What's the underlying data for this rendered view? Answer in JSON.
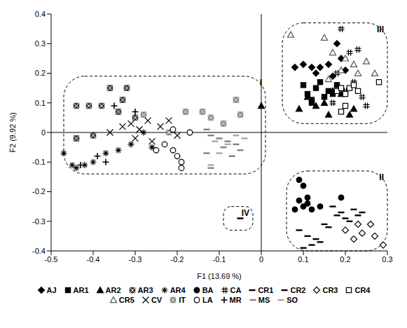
{
  "chart_data": {
    "type": "scatter",
    "xlabel": "F1 (13.69 %)",
    "ylabel": "F2 (9.92 %)",
    "xlim": [
      -0.5,
      0.3
    ],
    "xticks": [
      -0.5,
      -0.4,
      -0.3,
      -0.2,
      -0.1,
      0,
      0.1,
      0.2,
      0.3
    ],
    "ylim": [
      -0.4,
      0.4
    ],
    "yticks": [
      -0.4,
      -0.3,
      -0.2,
      -0.1,
      0,
      0.1,
      0.2,
      0.3,
      0.4
    ],
    "grid": false,
    "legend": "bottom",
    "groups": [
      {
        "label": "I",
        "x1": -0.47,
        "x2": 0.01,
        "y1": -0.14,
        "y2": 0.19
      },
      {
        "label": "II",
        "x1": 0.06,
        "x2": 0.3,
        "y1": -0.4,
        "y2": -0.13
      },
      {
        "label": "III",
        "x1": 0.05,
        "x2": 0.3,
        "y1": 0.03,
        "y2": 0.37
      },
      {
        "label": "IV",
        "x1": -0.09,
        "x2": -0.02,
        "y1": -0.33,
        "y2": -0.25
      }
    ],
    "series": [
      {
        "name": "AJ",
        "color": "#000000",
        "marker": "diamond",
        "x": [
          0.08,
          0.1,
          0.12,
          0.14,
          0.16,
          0.17,
          0.18,
          0.19,
          0.2,
          0.13
        ],
        "y": [
          0.22,
          0.23,
          0.22,
          0.22,
          0.23,
          0.19,
          0.3,
          0.25,
          0.21,
          0.2
        ]
      },
      {
        "name": "AR1",
        "color": "#000000",
        "marker": "square",
        "x": [
          0.1,
          0.11,
          0.12,
          0.13,
          0.14,
          0.15,
          0.16,
          0.17,
          0.18,
          0.12
        ],
        "y": [
          0.16,
          0.13,
          0.1,
          0.15,
          0.17,
          0.12,
          0.14,
          0.13,
          0.16,
          0.11
        ]
      },
      {
        "name": "AR2",
        "color": "#000000",
        "marker": "triangle",
        "x": [
          0.09,
          0.11,
          0.13,
          0.15,
          0.17,
          0.19,
          0.21,
          0.22,
          0.16,
          0.0
        ],
        "y": [
          0.08,
          0.12,
          0.09,
          0.1,
          0.14,
          0.13,
          0.06,
          0.08,
          0.06,
          0.09
        ]
      },
      {
        "name": "AR3",
        "color": "#333333",
        "marker": "bowtie",
        "x": [
          -0.44,
          -0.41,
          -0.38,
          -0.36,
          -0.32,
          -0.33,
          -0.34,
          -0.3,
          -0.44,
          -0.4
        ],
        "y": [
          0.09,
          0.09,
          0.09,
          0.15,
          0.15,
          0.11,
          0.07,
          0.05,
          -0.02,
          -0.01
        ]
      },
      {
        "name": "AR4",
        "color": "#000000",
        "marker": "asterisk",
        "x": [
          -0.47,
          -0.45,
          -0.44,
          -0.42,
          -0.4,
          -0.37,
          -0.34,
          -0.31,
          -0.26,
          -0.28
        ],
        "y": [
          -0.07,
          -0.11,
          -0.12,
          -0.11,
          -0.1,
          -0.07,
          -0.06,
          -0.04,
          -0.05,
          0.0
        ]
      },
      {
        "name": "BA",
        "color": "#000000",
        "marker": "circle",
        "x": [
          0.09,
          0.1,
          0.09,
          0.1,
          0.11,
          0.12,
          0.08,
          0.11,
          0.14,
          0.19
        ],
        "y": [
          -0.16,
          -0.18,
          -0.23,
          -0.25,
          -0.24,
          -0.26,
          -0.26,
          -0.22,
          -0.25,
          -0.22
        ]
      },
      {
        "name": "CA",
        "color": "#000000",
        "marker": "hash",
        "x": [
          0.19,
          0.23,
          0.21,
          0.18,
          0.22,
          0.24,
          0.25,
          0.2,
          0.17
        ],
        "y": [
          0.35,
          0.28,
          0.27,
          0.2,
          0.17,
          0.12,
          0.09,
          0.14,
          0.1
        ]
      },
      {
        "name": "CR1",
        "color": "#000000",
        "marker": "dash",
        "x": [
          0.09,
          0.11,
          0.12,
          0.14,
          0.15,
          0.16,
          0.18,
          0.2,
          -0.05
        ],
        "y": [
          -0.33,
          -0.35,
          -0.38,
          -0.37,
          -0.31,
          -0.32,
          -0.28,
          -0.29,
          -0.29
        ]
      },
      {
        "name": "CR2",
        "color": "#000000",
        "marker": "dash",
        "x": [
          0.17,
          0.19,
          0.21,
          0.22,
          0.23,
          0.24,
          0.13,
          0.1
        ],
        "y": [
          -0.25,
          -0.27,
          -0.3,
          -0.26,
          -0.28,
          -0.27,
          -0.36,
          -0.39
        ]
      },
      {
        "name": "CR3",
        "color": "#000000",
        "marker": "diamond-open",
        "x": [
          0.2,
          0.22,
          0.24,
          0.26,
          0.27,
          0.29,
          0.23
        ],
        "y": [
          -0.33,
          -0.36,
          -0.34,
          -0.31,
          -0.35,
          -0.38,
          -0.31
        ]
      },
      {
        "name": "CR4",
        "color": "#000000",
        "marker": "square-open",
        "x": [
          0.18,
          0.19,
          0.2,
          0.21,
          0.22,
          0.2,
          0.28,
          0.19,
          0.23
        ],
        "y": [
          0.14,
          0.15,
          0.13,
          0.15,
          0.16,
          0.09,
          0.17,
          0.07,
          0.14
        ]
      },
      {
        "name": "CR5",
        "color": "#555555",
        "marker": "triangle-open",
        "x": [
          0.07,
          0.15,
          0.17,
          0.19,
          0.2,
          0.22,
          0.23,
          0.25,
          0.27,
          0.16
        ],
        "y": [
          0.33,
          0.32,
          0.27,
          0.21,
          0.25,
          0.23,
          0.2,
          0.24,
          0.2,
          0.18
        ]
      },
      {
        "name": "CV",
        "color": "#000000",
        "marker": "x",
        "x": [
          -0.36,
          -0.33,
          -0.31,
          -0.29,
          -0.27,
          -0.24,
          -0.22,
          -0.2,
          -0.3,
          -0.26
        ],
        "y": [
          0.0,
          0.02,
          0.03,
          0.01,
          0.04,
          0.02,
          0.04,
          -0.01,
          -0.02,
          -0.03
        ]
      },
      {
        "name": "IT",
        "color": "#808080",
        "marker": "bowtie",
        "x": [
          -0.28,
          -0.14,
          -0.12,
          -0.09,
          -0.06,
          -0.05,
          -0.22,
          -0.18
        ],
        "y": [
          0.06,
          0.07,
          0.05,
          0.03,
          0.11,
          0.06,
          0.0,
          0.07
        ]
      },
      {
        "name": "LA",
        "color": "#000000",
        "marker": "circle-open",
        "x": [
          -0.25,
          -0.23,
          -0.21,
          -0.19,
          -0.19,
          -0.2,
          -0.17,
          -0.21
        ],
        "y": [
          -0.06,
          -0.04,
          -0.06,
          -0.1,
          -0.12,
          -0.08,
          0.0,
          0.01
        ]
      },
      {
        "name": "MR",
        "color": "#000000",
        "marker": "plus",
        "x": [
          -0.43,
          -0.39,
          -0.35,
          -0.3,
          -0.37
        ],
        "y": [
          -0.11,
          -0.08,
          0.09,
          0.07,
          -0.1
        ]
      },
      {
        "name": "MS",
        "color": "#808080",
        "marker": "dash",
        "x": [
          -0.13,
          -0.12,
          -0.1,
          -0.09,
          -0.08,
          -0.06,
          -0.05,
          -0.07,
          -0.13,
          -0.12
        ],
        "y": [
          0.01,
          -0.01,
          -0.02,
          -0.05,
          -0.03,
          -0.04,
          -0.06,
          -0.08,
          -0.07,
          -0.12
        ]
      },
      {
        "name": "SO",
        "color": "#a8a8a8",
        "marker": "dash",
        "x": [
          -0.12,
          -0.1,
          -0.08,
          -0.06,
          -0.04,
          -0.11
        ],
        "y": [
          -0.11,
          -0.07,
          -0.04,
          -0.01,
          -0.02,
          -0.03
        ]
      }
    ]
  }
}
